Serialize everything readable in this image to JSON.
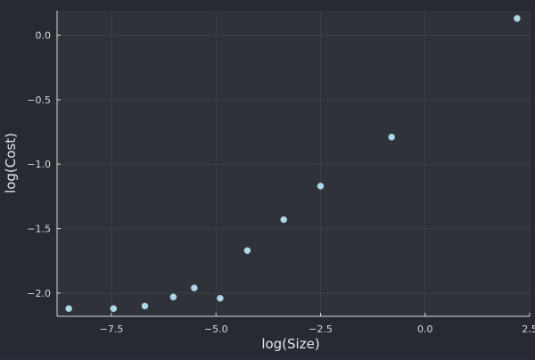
{
  "chart_data": {
    "type": "scatter",
    "title": "",
    "xlabel": "log(Size)",
    "ylabel": "log(Cost)",
    "xlim": [
      -8.8,
      2.5
    ],
    "ylim": [
      -2.18,
      0.19
    ],
    "x_ticks": [
      -7.5,
      -5.0,
      -2.5,
      0.0,
      2.5
    ],
    "x_tick_labels": [
      "−7.5",
      "−5.0",
      "−2.5",
      "0.0",
      "2.5"
    ],
    "y_ticks": [
      -2.0,
      -1.5,
      -1.0,
      -0.5,
      0.0
    ],
    "y_tick_labels": [
      "−2.0",
      "−1.5",
      "−1.0",
      "−0.5",
      "0.0"
    ],
    "grid": true,
    "legend": "none",
    "marker_color": "#add8e6",
    "series": [
      {
        "x": [
          -8.52,
          -7.45,
          -6.7,
          -6.02,
          -5.52,
          -4.9,
          -4.25,
          -3.38,
          -2.5,
          -0.8,
          2.2
        ],
        "y": [
          -2.12,
          -2.12,
          -2.1,
          -2.03,
          -1.96,
          -2.04,
          -1.67,
          -1.43,
          -1.17,
          -0.79,
          0.13
        ]
      }
    ]
  }
}
